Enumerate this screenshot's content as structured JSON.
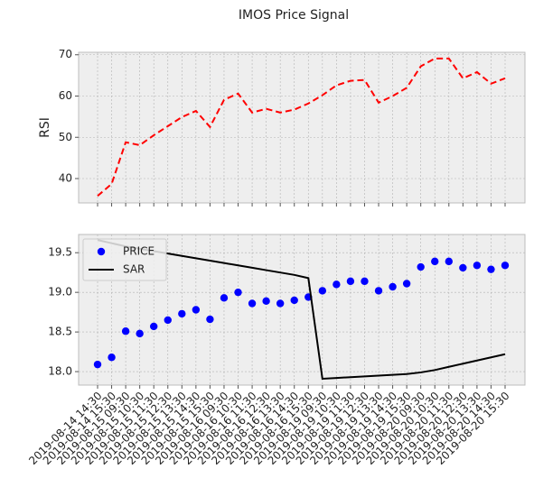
{
  "title": "IMOS Price Signal",
  "chart_data": [
    {
      "type": "line",
      "ylabel": "RSI",
      "grid": true,
      "ylim": [
        34.1,
        70.6
      ],
      "yticks": [
        40,
        50,
        60,
        70
      ],
      "series": [
        {
          "name": "RSI",
          "color": "#ff0000",
          "style": "dashed",
          "values": [
            35.8,
            38.7,
            48.8,
            48.1,
            50.5,
            52.7,
            54.9,
            56.4,
            52.5,
            59.1,
            60.6,
            56.0,
            56.9,
            56.0,
            56.7,
            58.2,
            60.2,
            62.6,
            63.7,
            63.9,
            58.4,
            60.0,
            62.0,
            67.2,
            69.1,
            69.1,
            64.3,
            65.8,
            63.0,
            64.3
          ]
        }
      ]
    },
    {
      "type": "line",
      "grid": true,
      "legend": "upper left",
      "ylim": [
        17.83,
        19.73
      ],
      "yticks": [
        {
          "value": 18,
          "label": "18.0"
        },
        18.5,
        {
          "value": 19,
          "label": "19.0"
        },
        19.5
      ],
      "categories": [
        "2019-08-14 14:30",
        "2019-08-14 15:30",
        "2019-08-15 09:30",
        "2019-08-15 10:30",
        "2019-08-15 11:30",
        "2019-08-15 12:30",
        "2019-08-15 13:30",
        "2019-08-15 14:30",
        "2019-08-15 15:30",
        "2019-08-16 09:30",
        "2019-08-16 10:30",
        "2019-08-16 11:30",
        "2019-08-16 12:30",
        "2019-08-16 13:30",
        "2019-08-16 14:30",
        "2019-08-16 15:30",
        "2019-08-19 09:30",
        "2019-08-19 10:30",
        "2019-08-19 11:30",
        "2019-08-19 12:30",
        "2019-08-19 13:30",
        "2019-08-19 14:30",
        "2019-08-19 15:30",
        "2019-08-20 09:30",
        "2019-08-20 10:30",
        "2019-08-20 11:30",
        "2019-08-20 12:30",
        "2019-08-20 13:30",
        "2019-08-20 14:30",
        "2019-08-20 15:30"
      ],
      "series": [
        {
          "name": "PRICE",
          "color": "#0000ff",
          "style": "markers",
          "values": [
            18.09,
            18.18,
            18.51,
            18.48,
            18.57,
            18.65,
            18.73,
            18.78,
            18.66,
            18.93,
            19.0,
            18.86,
            18.89,
            18.86,
            18.9,
            18.94,
            19.02,
            19.1,
            19.14,
            19.14,
            19.02,
            19.07,
            19.11,
            19.32,
            19.39,
            19.39,
            19.31,
            19.34,
            19.29,
            19.34
          ]
        },
        {
          "name": "SAR",
          "color": "#000000",
          "style": "solid",
          "values": [
            19.66,
            19.62,
            19.58,
            19.55,
            19.52,
            19.49,
            19.46,
            19.43,
            19.4,
            19.37,
            19.34,
            19.31,
            19.28,
            19.25,
            19.22,
            19.18,
            17.91,
            17.92,
            17.93,
            17.94,
            17.95,
            17.96,
            17.97,
            17.99,
            18.02,
            18.06,
            18.1,
            18.14,
            18.18,
            18.22
          ]
        }
      ]
    }
  ]
}
